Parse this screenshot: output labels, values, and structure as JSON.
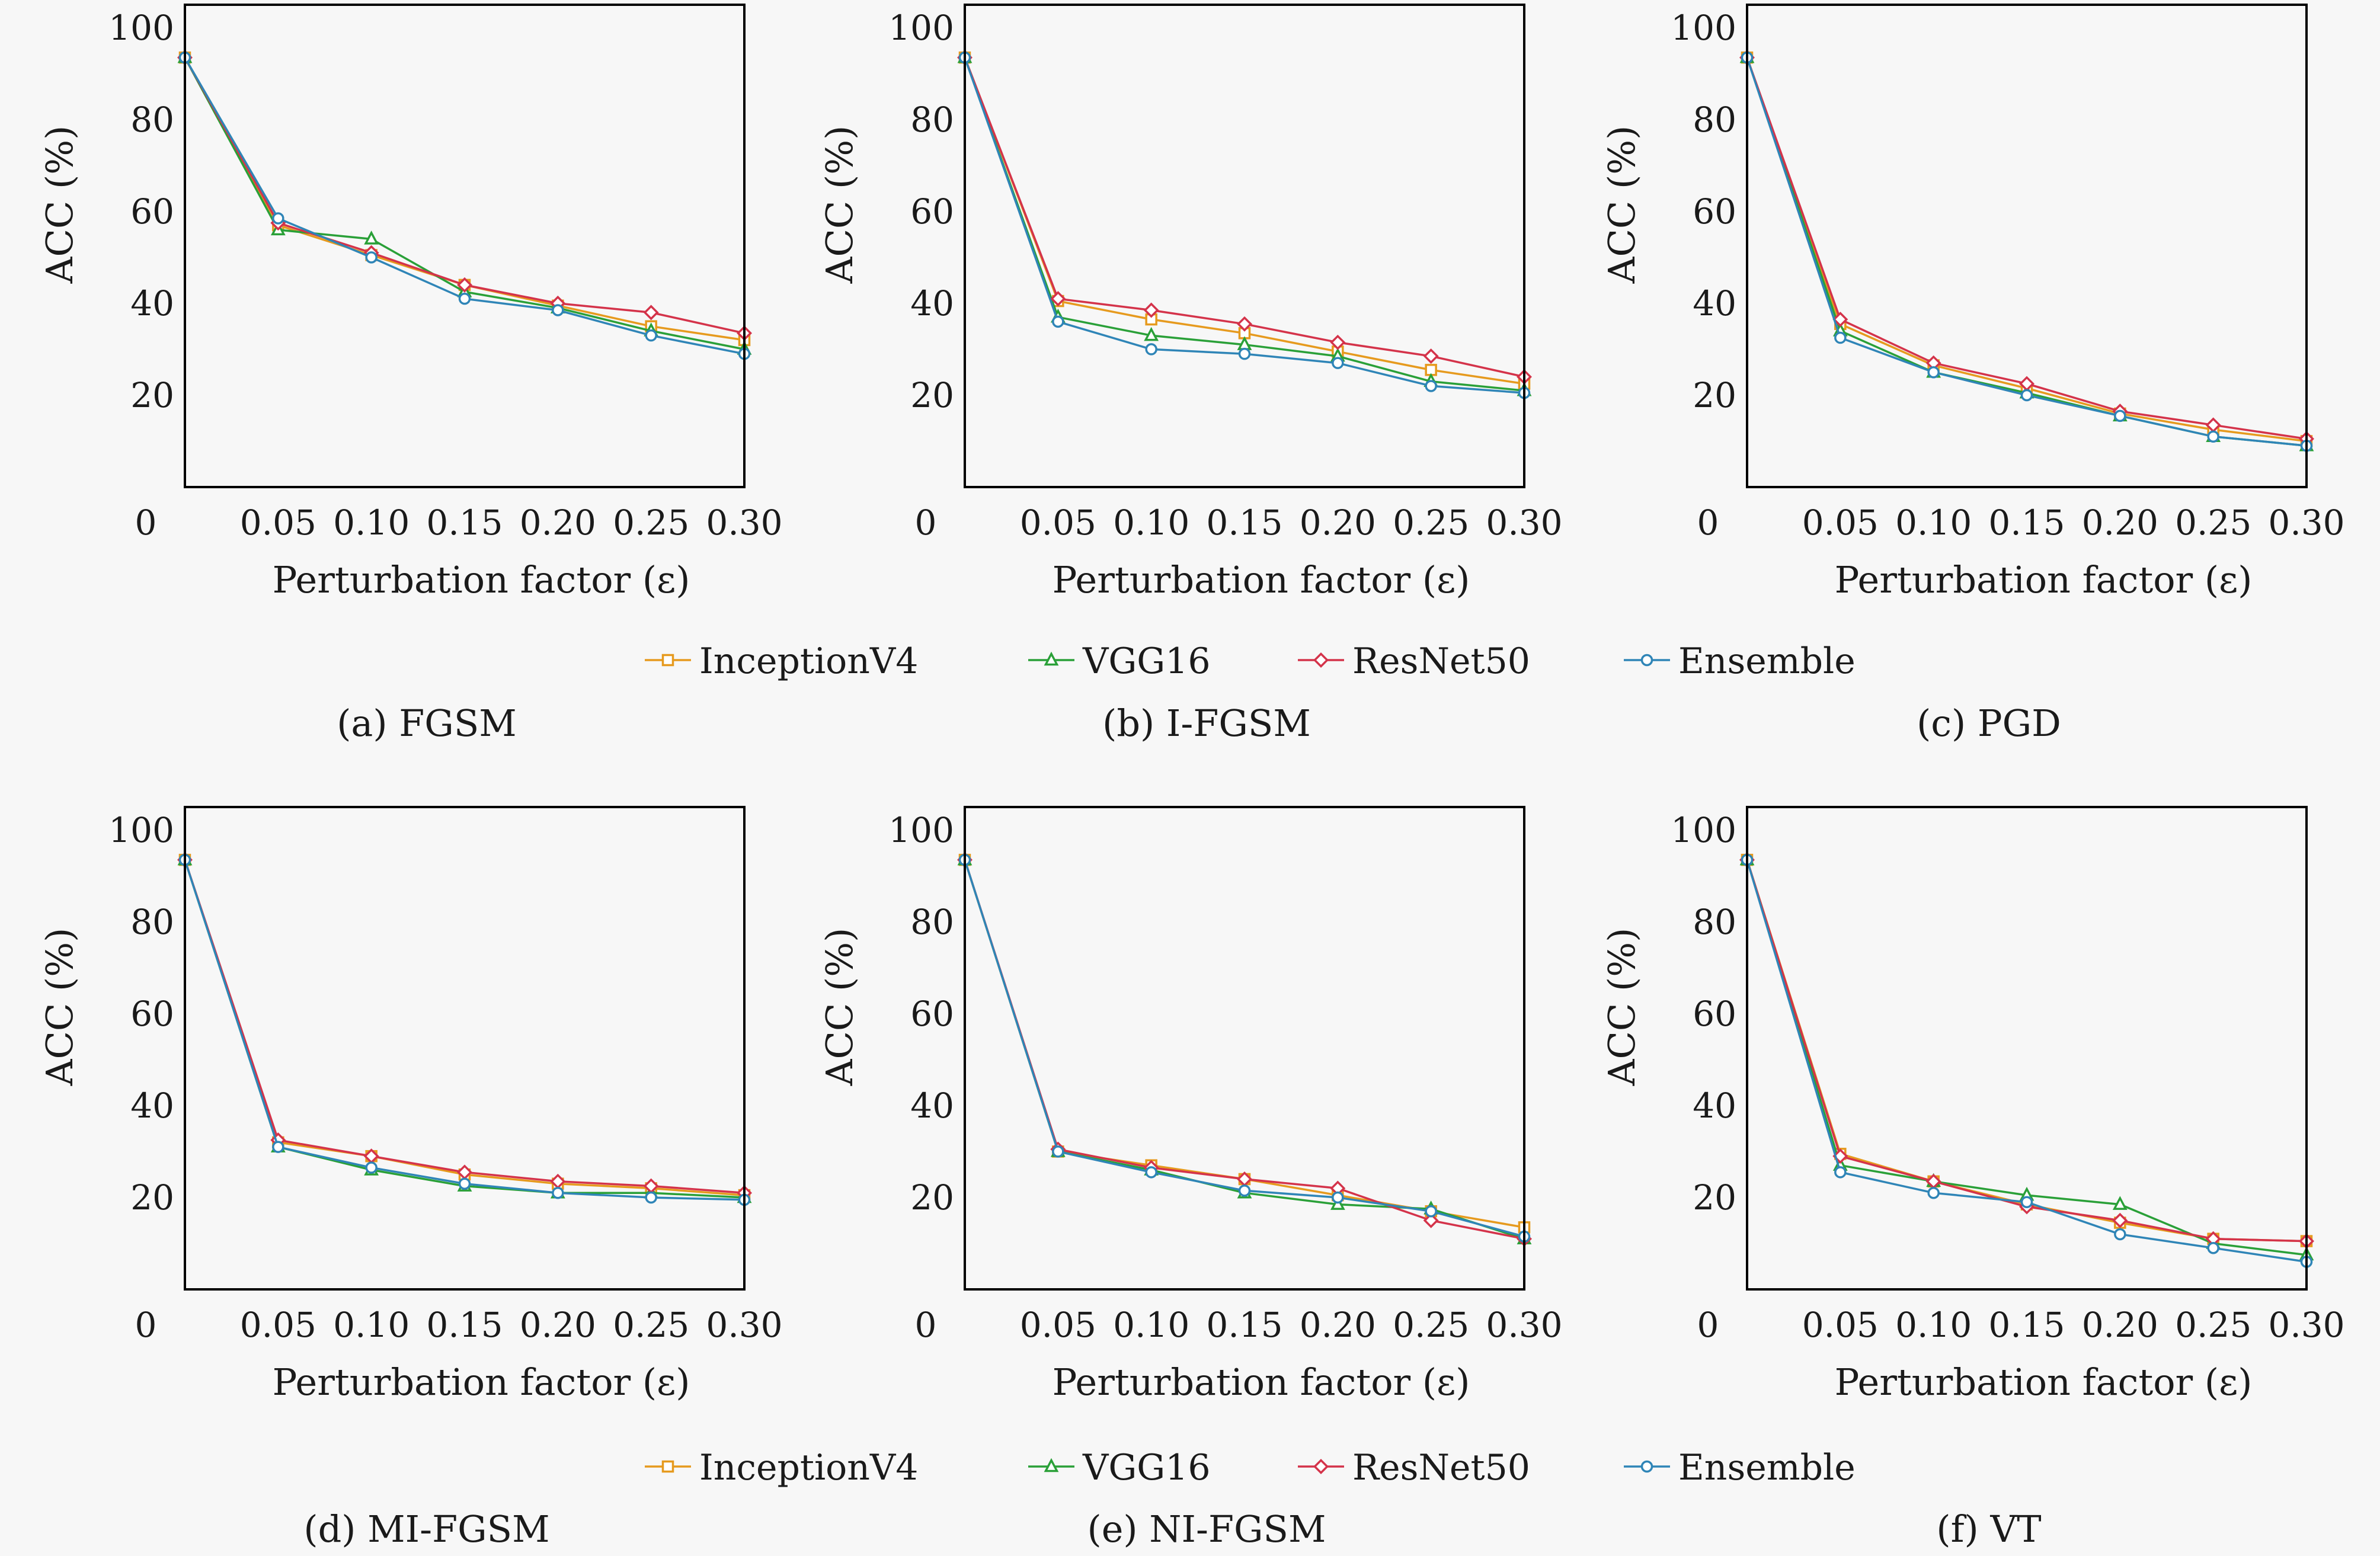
{
  "legend": [
    {
      "name": "InceptionV4",
      "color": "#E69A1E",
      "marker": "square"
    },
    {
      "name": "VGG16",
      "color": "#2AA038",
      "marker": "triangle"
    },
    {
      "name": "ResNet50",
      "color": "#D4334A",
      "marker": "diamond"
    },
    {
      "name": "Ensemble",
      "color": "#2F85B7",
      "marker": "circle"
    }
  ],
  "chart_data": [
    {
      "type": "line",
      "caption": "(a) FGSM",
      "xlabel": "Perturbation factor (ε)",
      "ylabel": "ACC (%)",
      "x": [
        0,
        0.05,
        0.1,
        0.15,
        0.2,
        0.25,
        0.3
      ],
      "xticks": [
        "0",
        "0.05",
        "0.10",
        "0.15",
        "0.20",
        "0.25",
        "0.30"
      ],
      "yticks": [
        20,
        40,
        60,
        80,
        100
      ],
      "ylim": [
        0,
        105
      ],
      "series": [
        {
          "name": "InceptionV4",
          "values": [
            93.5,
            57,
            50.5,
            44,
            39.5,
            35,
            32
          ]
        },
        {
          "name": "VGG16",
          "values": [
            93.5,
            56,
            54,
            42.5,
            39,
            34,
            30
          ]
        },
        {
          "name": "ResNet50",
          "values": [
            93.5,
            57.5,
            51,
            44,
            40,
            38,
            33.5
          ]
        },
        {
          "name": "Ensemble",
          "values": [
            93.5,
            58.5,
            50,
            41,
            38.5,
            33,
            29
          ]
        }
      ]
    },
    {
      "type": "line",
      "caption": "(b) I-FGSM",
      "xlabel": "Perturbation factor (ε)",
      "ylabel": "ACC (%)",
      "x": [
        0,
        0.05,
        0.1,
        0.15,
        0.2,
        0.25,
        0.3
      ],
      "xticks": [
        "0",
        "0.05",
        "0.10",
        "0.15",
        "0.20",
        "0.25",
        "0.30"
      ],
      "yticks": [
        20,
        40,
        60,
        80,
        100
      ],
      "ylim": [
        0,
        105
      ],
      "series": [
        {
          "name": "InceptionV4",
          "values": [
            93.5,
            40.5,
            36.5,
            33.5,
            29.5,
            25.5,
            22.5
          ]
        },
        {
          "name": "VGG16",
          "values": [
            93.5,
            37,
            33,
            31,
            28.5,
            23,
            21
          ]
        },
        {
          "name": "ResNet50",
          "values": [
            93.5,
            41,
            38.5,
            35.5,
            31.5,
            28.5,
            24
          ]
        },
        {
          "name": "Ensemble",
          "values": [
            93.5,
            36,
            30,
            29,
            27,
            22,
            20.5
          ]
        }
      ]
    },
    {
      "type": "line",
      "caption": "(c) PGD",
      "xlabel": "Perturbation factor (ε)",
      "ylabel": "ACC (%)",
      "x": [
        0,
        0.05,
        0.1,
        0.15,
        0.2,
        0.25,
        0.3
      ],
      "xticks": [
        "0",
        "0.05",
        "0.10",
        "0.15",
        "0.20",
        "0.25",
        "0.30"
      ],
      "yticks": [
        20,
        40,
        60,
        80,
        100
      ],
      "ylim": [
        0,
        105
      ],
      "series": [
        {
          "name": "InceptionV4",
          "values": [
            93.5,
            35.5,
            26.5,
            21.5,
            16,
            12.5,
            10
          ]
        },
        {
          "name": "VGG16",
          "values": [
            93.5,
            34,
            25,
            20.5,
            15.5,
            11,
            9
          ]
        },
        {
          "name": "ResNet50",
          "values": [
            93.5,
            36.5,
            27,
            22.5,
            16.5,
            13.5,
            10.5
          ]
        },
        {
          "name": "Ensemble",
          "values": [
            93.5,
            32.5,
            25,
            20,
            15.5,
            11,
            9
          ]
        }
      ]
    },
    {
      "type": "line",
      "caption": "(d) MI-FGSM",
      "xlabel": "Perturbation factor (ε)",
      "ylabel": "ACC (%)",
      "x": [
        0,
        0.05,
        0.1,
        0.15,
        0.2,
        0.25,
        0.3
      ],
      "xticks": [
        "0",
        "0.05",
        "0.10",
        "0.15",
        "0.20",
        "0.25",
        "0.30"
      ],
      "yticks": [
        20,
        40,
        60,
        80,
        100
      ],
      "ylim": [
        0,
        105
      ],
      "series": [
        {
          "name": "InceptionV4",
          "values": [
            93.5,
            32,
            29,
            25,
            23,
            22,
            20.5
          ]
        },
        {
          "name": "VGG16",
          "values": [
            93.5,
            31,
            26,
            22.5,
            21,
            21,
            20
          ]
        },
        {
          "name": "ResNet50",
          "values": [
            93.5,
            32.5,
            29,
            25.5,
            23.5,
            22.5,
            21
          ]
        },
        {
          "name": "Ensemble",
          "values": [
            93.5,
            31,
            26.5,
            23,
            21,
            20,
            19.5
          ]
        }
      ]
    },
    {
      "type": "line",
      "caption": "(e) NI-FGSM",
      "xlabel": "Perturbation factor (ε)",
      "ylabel": "ACC (%)",
      "x": [
        0,
        0.05,
        0.1,
        0.15,
        0.2,
        0.25,
        0.3
      ],
      "xticks": [
        "0",
        "0.05",
        "0.10",
        "0.15",
        "0.20",
        "0.25",
        "0.30"
      ],
      "yticks": [
        20,
        40,
        60,
        80,
        100
      ],
      "ylim": [
        0,
        105
      ],
      "series": [
        {
          "name": "InceptionV4",
          "values": [
            93.5,
            30,
            27,
            24,
            20.5,
            17,
            13.5
          ]
        },
        {
          "name": "VGG16",
          "values": [
            93.5,
            30,
            26,
            21,
            18.5,
            17.5,
            11
          ]
        },
        {
          "name": "ResNet50",
          "values": [
            93.5,
            30.5,
            26.5,
            24,
            22,
            15,
            11
          ]
        },
        {
          "name": "Ensemble",
          "values": [
            93.5,
            30,
            25.5,
            21.5,
            20,
            17,
            11.5
          ]
        }
      ]
    },
    {
      "type": "line",
      "caption": "(f) VT",
      "xlabel": "Perturbation factor (ε)",
      "ylabel": "ACC (%)",
      "x": [
        0,
        0.05,
        0.1,
        0.15,
        0.2,
        0.25,
        0.3
      ],
      "xticks": [
        "0",
        "0.05",
        "0.10",
        "0.15",
        "0.20",
        "0.25",
        "0.30"
      ],
      "yticks": [
        20,
        40,
        60,
        80,
        100
      ],
      "ylim": [
        0,
        105
      ],
      "series": [
        {
          "name": "InceptionV4",
          "values": [
            93.5,
            29.5,
            23.5,
            18.5,
            14.5,
            11,
            10.5
          ]
        },
        {
          "name": "VGG16",
          "values": [
            93.5,
            27,
            23.5,
            20.5,
            18.5,
            10,
            7.5
          ]
        },
        {
          "name": "ResNet50",
          "values": [
            93.5,
            29,
            23.5,
            18,
            15,
            11,
            10.5
          ]
        },
        {
          "name": "Ensemble",
          "values": [
            93.5,
            25.5,
            21,
            19,
            12,
            9,
            6
          ]
        }
      ]
    }
  ]
}
